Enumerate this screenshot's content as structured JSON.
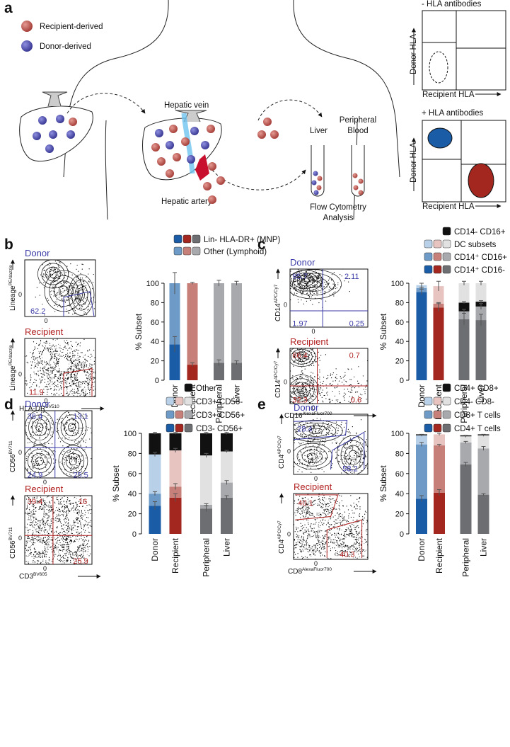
{
  "figure": {
    "panel_labels": [
      "a",
      "b",
      "c",
      "d",
      "e"
    ],
    "schematic": {
      "legend": [
        "Recipient-derived",
        "Donor-derived"
      ],
      "hepatic_vein": "Hepatic vein",
      "hepatic_artery": "Hepatic artery",
      "tube_labels": [
        [
          "Liver"
        ],
        [
          "Peripheral",
          "Blood"
        ]
      ],
      "analysis": [
        "Flow Cytometry",
        "Analysis"
      ],
      "hla_panels": [
        {
          "title": "- HLA antibodies",
          "y_label": "Donor HLA",
          "x_label": "Recipient HLA"
        },
        {
          "title": "+ HLA antibodies",
          "y_label": "Donor HLA",
          "x_label": "Recipient HLA"
        }
      ]
    },
    "zero": "0",
    "flow": [
      {
        "sample": "Donor",
        "gates": [
          62.2
        ],
        "y_label": "Lineage",
        "y_label_sup": "PE/dazzle"
      },
      {
        "sample": "Recipient",
        "gates": [
          11.9
        ],
        "y_label": "Lineage",
        "y_label_sup": "PE/dazzle",
        "x_label": "HLA-DR",
        "x_label_sup": "BV510"
      },
      {
        "sample": "Donor",
        "gates": [
          95.7,
          2.11,
          1.97,
          0.25
        ],
        "y_label": "CD14",
        "y_label_sup": "APC/Cy7"
      },
      {
        "sample": "Recipient",
        "gates": [
          66.4,
          0.7,
          32.3,
          0.6
        ],
        "y_label": "CD14",
        "y_label_sup": "APC/Cy7",
        "x_label": "CD16",
        "x_label_sup": "AlexaFluor700"
      },
      {
        "sample": "Donor",
        "gates": [
          36.4,
          13.1,
          24.9,
          25.5
        ],
        "y_label": "CD56",
        "y_label_sup": "BV711"
      },
      {
        "sample": "Recipient",
        "gates": [
          39.4,
          16,
          25.9
        ],
        "y_label": "CD56",
        "y_label_sup": "BV711",
        "x_label": "CD3",
        "x_label_sup": "BV605"
      },
      {
        "sample": "Donor",
        "gates": [
          28.4,
          58.2
        ],
        "y_label": "CD4",
        "y_label_sup": "APC/Cy7"
      },
      {
        "sample": "Recipient",
        "gates": [
          40.1,
          40.3
        ],
        "y_label": "CD4",
        "y_label_sup": "APC/Cy7",
        "x_label": "CD8",
        "x_label_sup": "AlexaFluor700"
      }
    ]
  },
  "chart_data": [
    {
      "type": "bar",
      "stacked": true,
      "y_label": "% Subset",
      "categories": [
        "Donor",
        "Recipient",
        "Peripheral",
        "Liver"
      ],
      "ylim": [
        0,
        100
      ],
      "yticks": [
        0,
        20,
        40,
        60,
        80,
        100
      ],
      "series": [
        {
          "name": "Lin- HLA-DR+ (MNP)",
          "colors": [
            "#1a5ca6",
            "#a3261f",
            "#6d6e71",
            "#6d6e71"
          ],
          "values": [
            37,
            16,
            18,
            18
          ],
          "errors": [
            8,
            2,
            3,
            2
          ]
        },
        {
          "name": "Other (Lymphoid)",
          "colors": [
            "#6d9ac6",
            "#c77f79",
            "#a7a9ac",
            "#a7a9ac"
          ],
          "values": [
            63,
            84,
            82,
            82
          ],
          "errors": [
            11,
            1,
            3,
            2
          ]
        }
      ]
    },
    {
      "type": "bar",
      "stacked": true,
      "y_label": "% Subset",
      "categories": [
        "Donor",
        "Recipient",
        "Peripheral",
        "Liver"
      ],
      "ylim": [
        0,
        100
      ],
      "yticks": [
        0,
        20,
        40,
        60,
        80,
        100
      ],
      "series": [
        {
          "name": "CD14⁺ CD16-",
          "colors": [
            "#1a5ca6",
            "#a3261f",
            "#6d6e71",
            "#6d6e71"
          ],
          "values": [
            91,
            75,
            63,
            62
          ],
          "errors": [
            3,
            4,
            6,
            6
          ]
        },
        {
          "name": "CD14⁺ CD16+",
          "colors": [
            "#6d9ac6",
            "#c77f79",
            "#a7a9ac",
            "#a7a9ac"
          ],
          "values": [
            4,
            4,
            8,
            14
          ],
          "errors": [
            1,
            1,
            2,
            3
          ]
        },
        {
          "name": "CD14- CD16+",
          "colors": [
            "#111111",
            "#111111",
            "#111111",
            "#111111"
          ],
          "values": [
            0,
            0,
            9,
            5
          ],
          "errors": [
            null,
            null,
            1,
            1
          ]
        },
        {
          "name": "DC subsets",
          "colors": [
            "#b9d1e8",
            "#e8c4c1",
            "#e1e1e1",
            "#e1e1e1"
          ],
          "values": [
            3,
            18,
            20,
            19
          ],
          "errors": [
            2,
            5,
            2,
            2
          ]
        }
      ]
    },
    {
      "type": "bar",
      "stacked": true,
      "y_label": "% Subset",
      "categories": [
        "Donor",
        "Recipient",
        "Peripheral",
        "Liver"
      ],
      "ylim": [
        0,
        100
      ],
      "yticks": [
        0,
        20,
        40,
        60,
        80,
        100
      ],
      "series": [
        {
          "name": "CD3- CD56+",
          "colors": [
            "#1a5ca6",
            "#a3261f",
            "#6d6e71",
            "#6d6e71"
          ],
          "values": [
            28,
            36,
            25,
            36
          ],
          "errors": [
            4,
            4,
            3,
            2
          ]
        },
        {
          "name": "CD3+ CD56+",
          "colors": [
            "#6d9ac6",
            "#c77f79",
            "#a7a9ac",
            "#a7a9ac"
          ],
          "values": [
            12,
            11,
            4,
            15
          ],
          "errors": [
            2,
            3,
            1,
            2
          ]
        },
        {
          "name": "CD3+ CD56-",
          "colors": [
            "#b9d1e8",
            "#e8c4c1",
            "#e1e1e1",
            "#e1e1e1"
          ],
          "values": [
            39,
            36,
            49,
            31
          ],
          "errors": [
            2,
            2,
            2,
            1
          ]
        },
        {
          "name": "Other",
          "colors": [
            "#111111",
            "#111111",
            "#111111",
            "#111111"
          ],
          "values": [
            21,
            17,
            22,
            18
          ],
          "errors": [
            1,
            1,
            1,
            1
          ]
        }
      ]
    },
    {
      "type": "bar",
      "stacked": true,
      "y_label": "% Subset",
      "categories": [
        "Donor",
        "Recipient",
        "Peripheral",
        "Liver"
      ],
      "ylim": [
        0,
        100
      ],
      "yticks": [
        0,
        20,
        40,
        60,
        80,
        100
      ],
      "series": [
        {
          "name": "CD4+ T cells",
          "colors": [
            "#1a5ca6",
            "#a3261f",
            "#6d6e71",
            "#6d6e71"
          ],
          "values": [
            35,
            41,
            69,
            39
          ],
          "errors": [
            3,
            3,
            2,
            1
          ]
        },
        {
          "name": "CD8+ T cells",
          "colors": [
            "#6d9ac6",
            "#c77f79",
            "#a7a9ac",
            "#a7a9ac"
          ],
          "values": [
            54,
            47,
            22,
            46
          ],
          "errors": [
            2,
            1,
            1,
            2
          ]
        },
        {
          "name": "CD4- CD8-",
          "colors": [
            "#b9d1e8",
            "#e8c4c1",
            "#e1e1e1",
            "#e1e1e1"
          ],
          "values": [
            9,
            11,
            6,
            13
          ],
          "errors": [
            1,
            1,
            1,
            1
          ]
        },
        {
          "name": "CD4+ CD8+",
          "colors": [
            "#111111",
            "#111111",
            "#111111",
            "#111111"
          ],
          "values": [
            1,
            0,
            1,
            1
          ],
          "errors": [
            null,
            null,
            null,
            null
          ]
        }
      ]
    }
  ]
}
